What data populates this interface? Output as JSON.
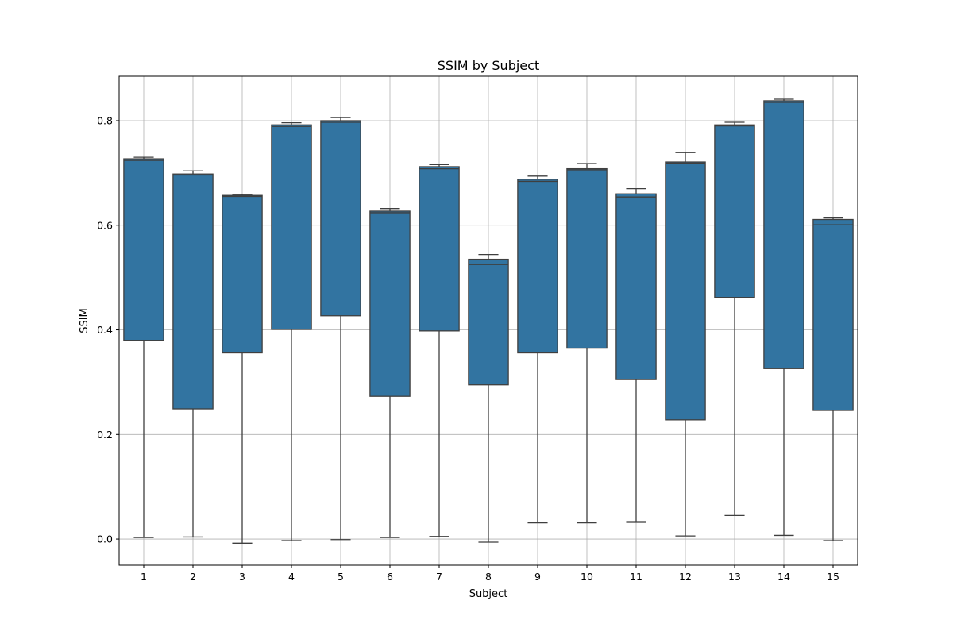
{
  "chart_data": {
    "type": "box",
    "title": "SSIM by Subject",
    "xlabel": "Subject",
    "ylabel": "SSIM",
    "categories": [
      "1",
      "2",
      "3",
      "4",
      "5",
      "6",
      "7",
      "8",
      "9",
      "10",
      "11",
      "12",
      "13",
      "14",
      "15"
    ],
    "boxes": [
      {
        "whisker_low": 0.003,
        "q1": 0.38,
        "median": 0.724,
        "q3": 0.727,
        "whisker_high": 0.73
      },
      {
        "whisker_low": 0.004,
        "q1": 0.249,
        "median": 0.696,
        "q3": 0.698,
        "whisker_high": 0.704
      },
      {
        "whisker_low": -0.008,
        "q1": 0.356,
        "median": 0.655,
        "q3": 0.657,
        "whisker_high": 0.659
      },
      {
        "whisker_low": -0.003,
        "q1": 0.401,
        "median": 0.789,
        "q3": 0.792,
        "whisker_high": 0.796
      },
      {
        "whisker_low": -0.001,
        "q1": 0.427,
        "median": 0.797,
        "q3": 0.8,
        "whisker_high": 0.806
      },
      {
        "whisker_low": 0.003,
        "q1": 0.273,
        "median": 0.624,
        "q3": 0.627,
        "whisker_high": 0.632
      },
      {
        "whisker_low": 0.005,
        "q1": 0.398,
        "median": 0.708,
        "q3": 0.712,
        "whisker_high": 0.716
      },
      {
        "whisker_low": -0.006,
        "q1": 0.295,
        "median": 0.525,
        "q3": 0.535,
        "whisker_high": 0.544
      },
      {
        "whisker_low": 0.031,
        "q1": 0.356,
        "median": 0.684,
        "q3": 0.688,
        "whisker_high": 0.694
      },
      {
        "whisker_low": 0.031,
        "q1": 0.365,
        "median": 0.706,
        "q3": 0.708,
        "whisker_high": 0.718
      },
      {
        "whisker_low": 0.032,
        "q1": 0.305,
        "median": 0.654,
        "q3": 0.66,
        "whisker_high": 0.67
      },
      {
        "whisker_low": 0.006,
        "q1": 0.228,
        "median": 0.719,
        "q3": 0.721,
        "whisker_high": 0.739
      },
      {
        "whisker_low": 0.045,
        "q1": 0.462,
        "median": 0.79,
        "q3": 0.792,
        "whisker_high": 0.797
      },
      {
        "whisker_low": 0.007,
        "q1": 0.326,
        "median": 0.835,
        "q3": 0.838,
        "whisker_high": 0.841
      },
      {
        "whisker_low": -0.003,
        "q1": 0.246,
        "median": 0.601,
        "q3": 0.611,
        "whisker_high": 0.614
      }
    ],
    "ylim": [
      -0.05,
      0.885
    ],
    "yticks": [
      0.0,
      0.2,
      0.4,
      0.6,
      0.8
    ],
    "ytick_labels": [
      "0.0",
      "0.2",
      "0.4",
      "0.6",
      "0.8"
    ],
    "grid": true,
    "box_color": "#3274a1",
    "line_color": "#3f3f3f"
  }
}
